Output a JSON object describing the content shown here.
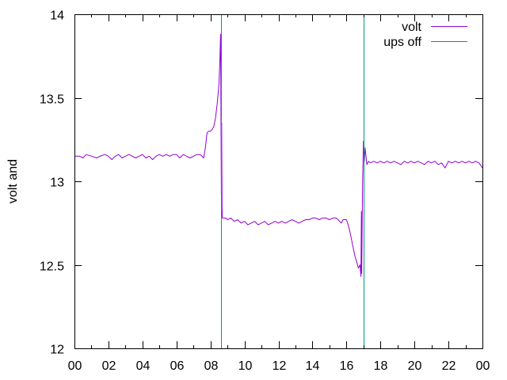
{
  "chart_data": {
    "type": "line",
    "ylabel": "volt and",
    "xlabel": "",
    "title": "",
    "x_ticks": [
      "00",
      "02",
      "04",
      "06",
      "08",
      "10",
      "12",
      "14",
      "16",
      "18",
      "20",
      "22",
      "00"
    ],
    "x_range_hours": [
      0,
      24
    ],
    "ylim": [
      12,
      14
    ],
    "y_ticks": [
      "12",
      "12.5",
      "13",
      "13.5",
      "14"
    ],
    "grid": false,
    "legend_position": "top-right",
    "series": [
      {
        "name": "volt",
        "color": "#9400d3",
        "points": [
          [
            0.0,
            13.15
          ],
          [
            0.3,
            13.15
          ],
          [
            0.5,
            13.14
          ],
          [
            0.7,
            13.16
          ],
          [
            1.0,
            13.15
          ],
          [
            1.3,
            13.14
          ],
          [
            1.5,
            13.15
          ],
          [
            1.8,
            13.16
          ],
          [
            2.0,
            13.15
          ],
          [
            2.2,
            13.13
          ],
          [
            2.4,
            13.15
          ],
          [
            2.6,
            13.16
          ],
          [
            2.8,
            13.14
          ],
          [
            3.0,
            13.15
          ],
          [
            3.2,
            13.16
          ],
          [
            3.4,
            13.15
          ],
          [
            3.6,
            13.14
          ],
          [
            3.8,
            13.15
          ],
          [
            4.0,
            13.16
          ],
          [
            4.2,
            13.14
          ],
          [
            4.4,
            13.15
          ],
          [
            4.6,
            13.13
          ],
          [
            4.8,
            13.15
          ],
          [
            5.0,
            13.16
          ],
          [
            5.2,
            13.15
          ],
          [
            5.4,
            13.16
          ],
          [
            5.6,
            13.15
          ],
          [
            5.8,
            13.16
          ],
          [
            6.0,
            13.16
          ],
          [
            6.2,
            13.14
          ],
          [
            6.4,
            13.16
          ],
          [
            6.6,
            13.15
          ],
          [
            6.8,
            13.14
          ],
          [
            7.0,
            13.15
          ],
          [
            7.2,
            13.16
          ],
          [
            7.4,
            13.16
          ],
          [
            7.6,
            13.14
          ],
          [
            7.7,
            13.2
          ],
          [
            7.8,
            13.29
          ],
          [
            7.9,
            13.3
          ],
          [
            8.0,
            13.3
          ],
          [
            8.1,
            13.31
          ],
          [
            8.2,
            13.33
          ],
          [
            8.3,
            13.38
          ],
          [
            8.4,
            13.47
          ],
          [
            8.5,
            13.58
          ],
          [
            8.55,
            13.72
          ],
          [
            8.6,
            13.88
          ],
          [
            8.62,
            13.32
          ],
          [
            8.64,
            12.92
          ],
          [
            8.66,
            13.35
          ],
          [
            8.68,
            12.84
          ],
          [
            8.7,
            12.78
          ],
          [
            8.9,
            12.78
          ],
          [
            9.0,
            12.77
          ],
          [
            9.2,
            12.78
          ],
          [
            9.4,
            12.76
          ],
          [
            9.6,
            12.77
          ],
          [
            9.8,
            12.75
          ],
          [
            10.0,
            12.76
          ],
          [
            10.2,
            12.74
          ],
          [
            10.4,
            12.75
          ],
          [
            10.6,
            12.76
          ],
          [
            10.8,
            12.74
          ],
          [
            11.0,
            12.75
          ],
          [
            11.2,
            12.76
          ],
          [
            11.4,
            12.74
          ],
          [
            11.6,
            12.75
          ],
          [
            11.8,
            12.76
          ],
          [
            12.0,
            12.75
          ],
          [
            12.2,
            12.76
          ],
          [
            12.4,
            12.75
          ],
          [
            12.6,
            12.76
          ],
          [
            12.8,
            12.77
          ],
          [
            13.0,
            12.76
          ],
          [
            13.2,
            12.75
          ],
          [
            13.4,
            12.76
          ],
          [
            13.6,
            12.77
          ],
          [
            13.8,
            12.77
          ],
          [
            14.0,
            12.78
          ],
          [
            14.2,
            12.78
          ],
          [
            14.4,
            12.77
          ],
          [
            14.6,
            12.78
          ],
          [
            14.8,
            12.78
          ],
          [
            15.0,
            12.77
          ],
          [
            15.2,
            12.78
          ],
          [
            15.4,
            12.78
          ],
          [
            15.6,
            12.76
          ],
          [
            15.7,
            12.75
          ],
          [
            15.8,
            12.77
          ],
          [
            16.0,
            12.77
          ],
          [
            16.1,
            12.74
          ],
          [
            16.2,
            12.7
          ],
          [
            16.3,
            12.65
          ],
          [
            16.4,
            12.6
          ],
          [
            16.5,
            12.55
          ],
          [
            16.6,
            12.52
          ],
          [
            16.7,
            12.48
          ],
          [
            16.8,
            12.5
          ],
          [
            16.85,
            12.43
          ],
          [
            16.88,
            12.82
          ],
          [
            16.9,
            12.45
          ],
          [
            16.95,
            13.0
          ],
          [
            17.0,
            13.24
          ],
          [
            17.05,
            13.12
          ],
          [
            17.1,
            13.2
          ],
          [
            17.2,
            13.1
          ],
          [
            17.3,
            13.12
          ],
          [
            17.4,
            13.11
          ],
          [
            17.6,
            13.12
          ],
          [
            17.8,
            13.11
          ],
          [
            18.0,
            13.12
          ],
          [
            18.2,
            13.11
          ],
          [
            18.4,
            13.12
          ],
          [
            18.6,
            13.11
          ],
          [
            18.8,
            13.12
          ],
          [
            19.0,
            13.11
          ],
          [
            19.2,
            13.1
          ],
          [
            19.4,
            13.12
          ],
          [
            19.6,
            13.11
          ],
          [
            19.8,
            13.12
          ],
          [
            20.0,
            13.11
          ],
          [
            20.2,
            13.12
          ],
          [
            20.4,
            13.11
          ],
          [
            20.6,
            13.1
          ],
          [
            20.8,
            13.12
          ],
          [
            21.0,
            13.11
          ],
          [
            21.2,
            13.12
          ],
          [
            21.4,
            13.1
          ],
          [
            21.6,
            13.11
          ],
          [
            21.8,
            13.08
          ],
          [
            22.0,
            13.12
          ],
          [
            22.2,
            13.11
          ],
          [
            22.4,
            13.12
          ],
          [
            22.6,
            13.11
          ],
          [
            22.8,
            13.12
          ],
          [
            23.0,
            13.11
          ],
          [
            23.2,
            13.12
          ],
          [
            23.4,
            13.11
          ],
          [
            23.6,
            13.12
          ],
          [
            23.8,
            13.11
          ],
          [
            24.0,
            13.08
          ]
        ]
      },
      {
        "name": "ups off",
        "color": "#009e73",
        "type": "vertical-lines",
        "x": [
          8.6,
          17.0
        ]
      }
    ]
  }
}
